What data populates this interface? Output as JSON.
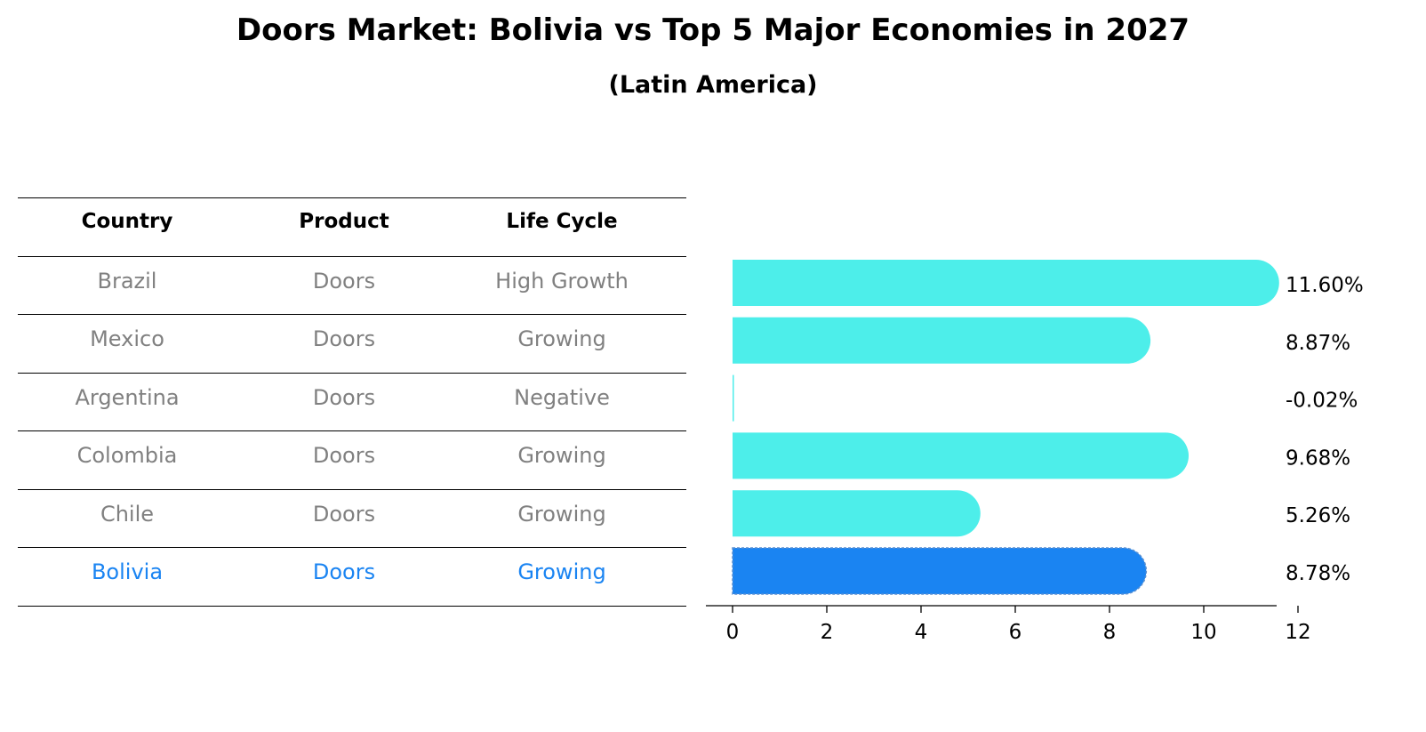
{
  "title": "Doors Market: Bolivia vs Top 5 Major Economies in 2027",
  "subtitle": "(Latin America)",
  "table": {
    "headers": [
      "Country",
      "Product",
      "Life Cycle"
    ],
    "rows": [
      [
        "Brazil",
        "Doors",
        "High Growth"
      ],
      [
        "Mexico",
        "Doors",
        "Growing"
      ],
      [
        "Argentina",
        "Doors",
        "Negative"
      ],
      [
        "Colombia",
        "Doors",
        "Growing"
      ],
      [
        "Chile",
        "Doors",
        "Growing"
      ],
      [
        "Bolivia",
        "Doors",
        "Growing"
      ]
    ],
    "highlight_row": 5
  },
  "colors": {
    "bar": "#4deeea",
    "highlight": "#1a84f2",
    "muted_text": "#808080"
  },
  "chart_data": {
    "type": "bar",
    "orientation": "horizontal",
    "categories": [
      "Brazil",
      "Mexico",
      "Argentina",
      "Colombia",
      "Chile",
      "Bolivia"
    ],
    "values": [
      11.6,
      8.87,
      -0.02,
      9.68,
      5.26,
      8.78
    ],
    "value_labels": [
      "11.60%",
      "8.87%",
      "-0.02%",
      "9.68%",
      "5.26%",
      "8.78%"
    ],
    "highlight_index": 5,
    "xlim": [
      0,
      12
    ],
    "xticks": [
      0,
      2,
      4,
      6,
      8,
      10,
      12
    ],
    "xtick_labels": [
      "0",
      "2",
      "4",
      "6",
      "8",
      "10",
      "12"
    ]
  }
}
